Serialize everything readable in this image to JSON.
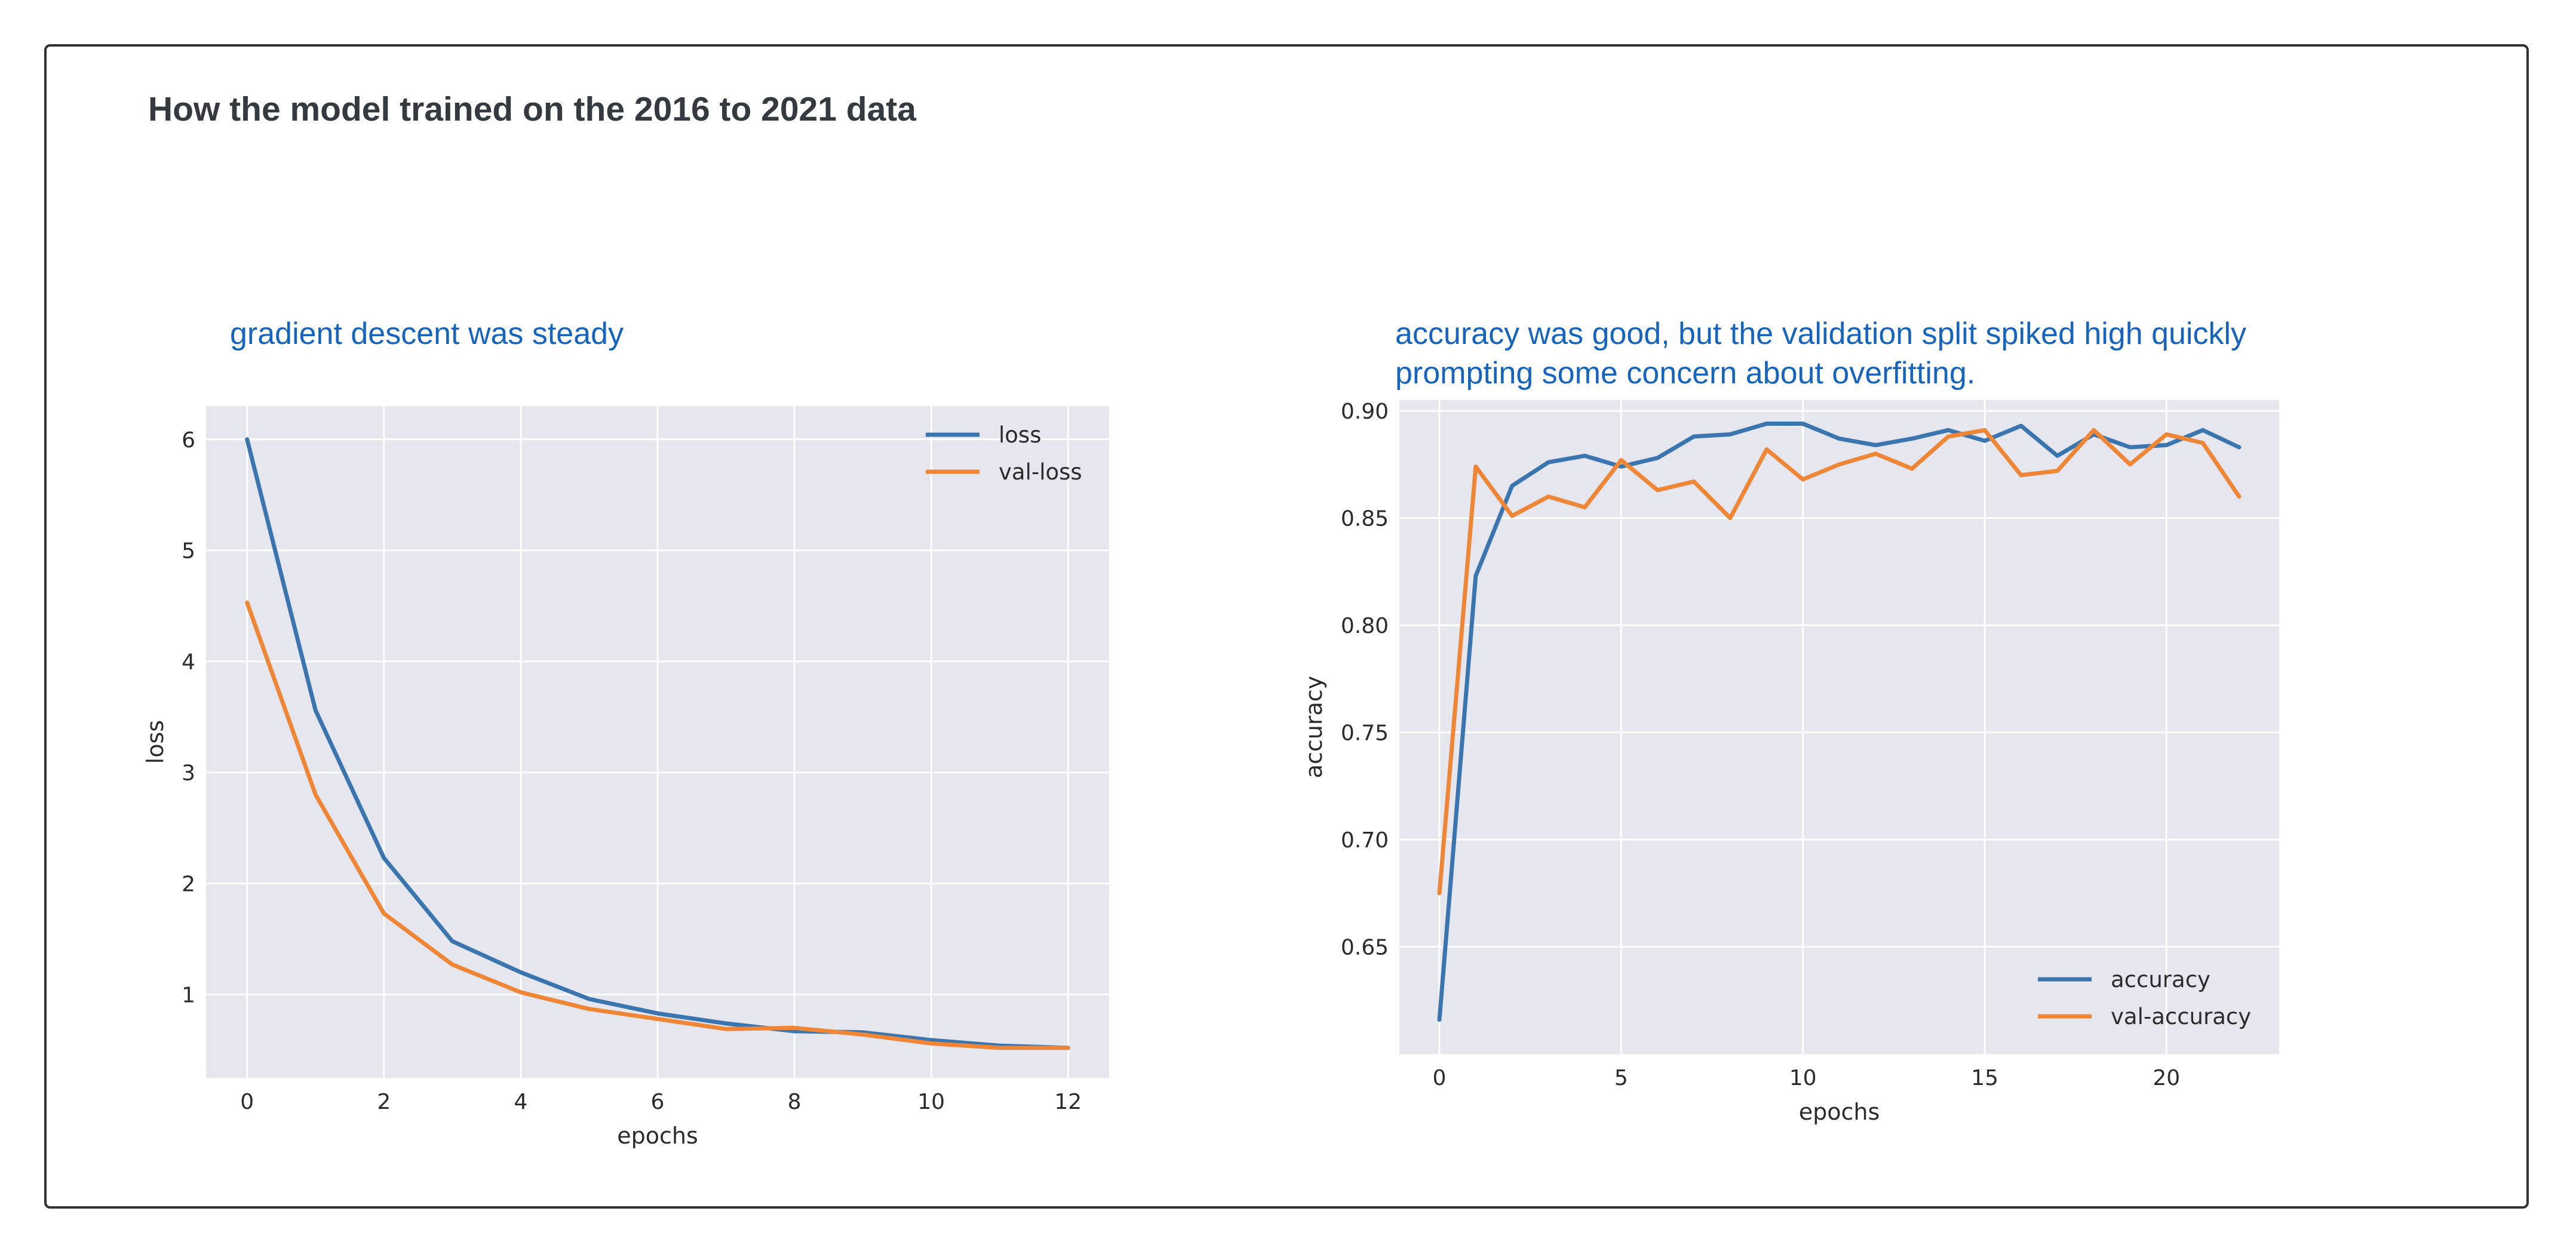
{
  "page_title": "How the model trained on the 2016 to 2021 data",
  "colors": {
    "blue_series": "#3b75af",
    "orange_series": "#ef8636",
    "plot_background": "#e6e6ef",
    "grid": "#ffffff",
    "caption": "#1565c0"
  },
  "chart_data": [
    {
      "type": "line",
      "caption": "gradient descent was steady",
      "xlabel": "epochs",
      "ylabel": "loss",
      "xlim": [
        -0.6,
        12.6
      ],
      "ylim": [
        0.25,
        6.3
      ],
      "x_ticks": [
        0,
        2,
        4,
        6,
        8,
        10,
        12
      ],
      "y_ticks": [
        1,
        2,
        3,
        4,
        5,
        6
      ],
      "grid": true,
      "legend_position": "top-right",
      "x": [
        0,
        1,
        2,
        3,
        4,
        5,
        6,
        7,
        8,
        9,
        10,
        11,
        12
      ],
      "series": [
        {
          "name": "loss",
          "color": "#3b75af",
          "values": [
            6.0,
            3.56,
            2.23,
            1.48,
            1.2,
            0.96,
            0.83,
            0.74,
            0.67,
            0.66,
            0.59,
            0.54,
            0.52
          ]
        },
        {
          "name": "val-loss",
          "color": "#ef8636",
          "values": [
            4.53,
            2.8,
            1.73,
            1.27,
            1.02,
            0.87,
            0.78,
            0.69,
            0.7,
            0.64,
            0.56,
            0.52,
            0.52
          ]
        }
      ]
    },
    {
      "type": "line",
      "caption": "accuracy was good, but the validation split spiked high quickly prompting some concern about overfitting.",
      "xlabel": "epochs",
      "ylabel": "accuracy",
      "xlim": [
        -1.1,
        23.1
      ],
      "ylim": [
        0.6,
        0.905
      ],
      "x_ticks": [
        0,
        5,
        10,
        15,
        20
      ],
      "y_ticks": [
        0.65,
        0.7,
        0.75,
        0.8,
        0.85,
        0.9
      ],
      "grid": true,
      "legend_position": "bottom-right",
      "x": [
        0,
        1,
        2,
        3,
        4,
        5,
        6,
        7,
        8,
        9,
        10,
        11,
        12,
        13,
        14,
        15,
        16,
        17,
        18,
        19,
        20,
        21,
        22
      ],
      "series": [
        {
          "name": "accuracy",
          "color": "#3b75af",
          "values": [
            0.616,
            0.823,
            0.865,
            0.876,
            0.879,
            0.874,
            0.878,
            0.888,
            0.889,
            0.894,
            0.894,
            0.887,
            0.884,
            0.887,
            0.891,
            0.886,
            0.893,
            0.879,
            0.889,
            0.883,
            0.884,
            0.891,
            0.883
          ]
        },
        {
          "name": "val-accuracy",
          "color": "#ef8636",
          "values": [
            0.675,
            0.874,
            0.851,
            0.86,
            0.855,
            0.877,
            0.863,
            0.867,
            0.85,
            0.882,
            0.868,
            0.875,
            0.88,
            0.873,
            0.888,
            0.891,
            0.87,
            0.872,
            0.891,
            0.875,
            0.889,
            0.885,
            0.86
          ]
        }
      ]
    }
  ]
}
